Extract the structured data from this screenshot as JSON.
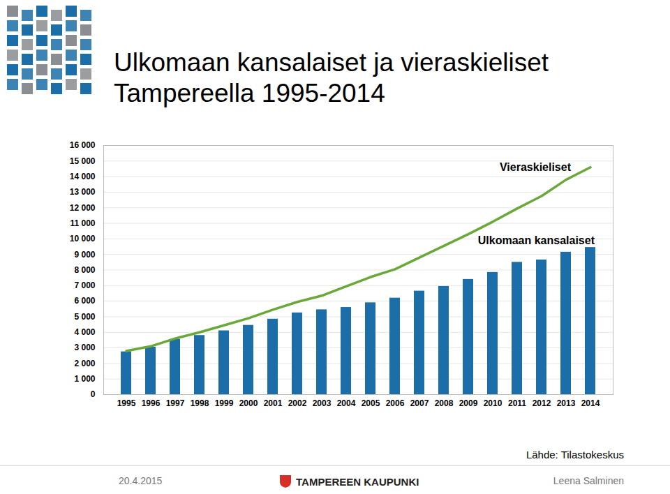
{
  "chart_data": {
    "type": "bar",
    "title": "Ulkomaan kansalaiset ja vieraskieliset Tampereella 1995-2014",
    "categories": [
      "1995",
      "1996",
      "1997",
      "1998",
      "1999",
      "2000",
      "2001",
      "2002",
      "2003",
      "2004",
      "2005",
      "2006",
      "2007",
      "2008",
      "2009",
      "2010",
      "2011",
      "2012",
      "2013",
      "2014"
    ],
    "series": [
      {
        "name": "Ulkomaan kansalaiset",
        "type": "bar",
        "color": "#1b6ea8",
        "values": [
          2750,
          3050,
          3550,
          3800,
          4100,
          4450,
          4850,
          5250,
          5450,
          5600,
          5900,
          6200,
          6650,
          6950,
          7400,
          7850,
          8500,
          8650,
          9150,
          9450
        ]
      },
      {
        "name": "Vieraskieliset",
        "type": "line",
        "color": "#6aa83a",
        "values": [
          2800,
          3100,
          3600,
          4000,
          4450,
          4900,
          5450,
          5950,
          6350,
          6950,
          7550,
          8050,
          8800,
          9550,
          10300,
          11100,
          11950,
          12750,
          13800,
          14600
        ]
      }
    ],
    "ylim": [
      0,
      16000
    ],
    "yticks": [
      0,
      {
        "value": 1000,
        "label": "1 000"
      },
      {
        "value": 2000,
        "label": "2 000"
      },
      {
        "value": 3000,
        "label": "3 000"
      },
      {
        "value": 4000,
        "label": "4 000"
      },
      {
        "value": 5000,
        "label": "5 000"
      },
      {
        "value": 6000,
        "label": "6 000"
      },
      {
        "value": 7000,
        "label": "7 000"
      },
      {
        "value": 8000,
        "label": "8 000"
      },
      {
        "value": 9000,
        "label": "9 000"
      },
      {
        "value": 10000,
        "label": "10 000"
      },
      {
        "value": 11000,
        "label": "11 000"
      },
      {
        "value": 12000,
        "label": "12 000"
      },
      {
        "value": 13000,
        "label": "13 000"
      },
      {
        "value": 14000,
        "label": "14 000"
      },
      {
        "value": 15000,
        "label": "15 000"
      },
      {
        "value": 16000,
        "label": "16 000"
      }
    ],
    "grid": true,
    "source": "Lähde: Tilastokeskus",
    "footer": {
      "date": "20.4.2015",
      "organization": "TAMPEREEN KAUPUNKI",
      "author": "Leena Salminen"
    }
  }
}
